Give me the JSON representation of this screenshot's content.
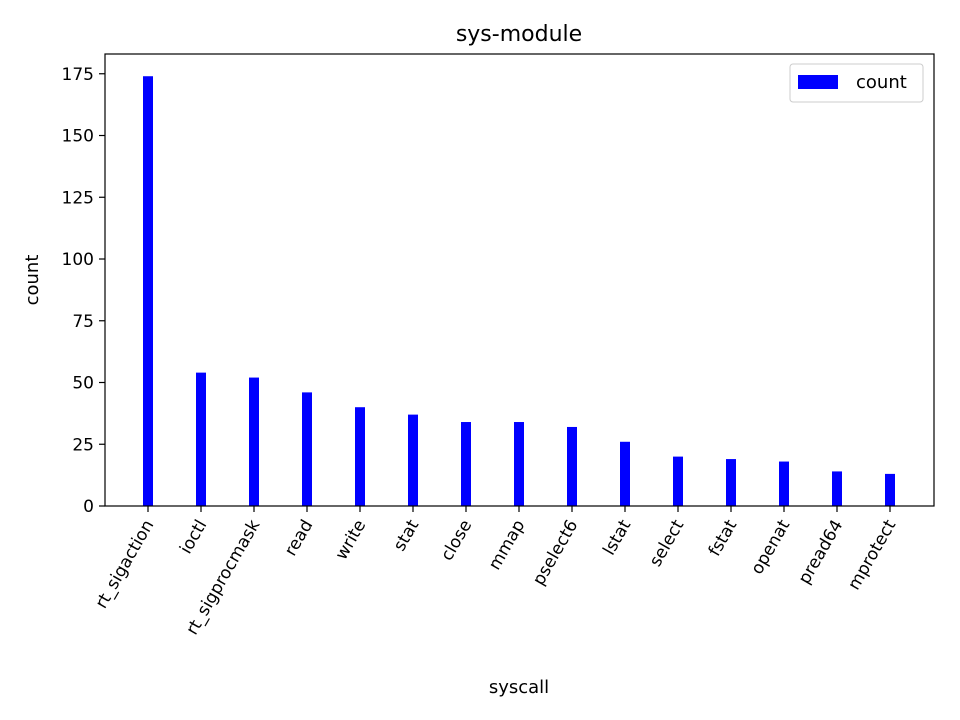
{
  "chart_data": {
    "type": "bar",
    "title": "sys-module",
    "xlabel": "syscall",
    "ylabel": "count",
    "categories": [
      "rt_sigaction",
      "ioctl",
      "rt_sigprocmask",
      "read",
      "write",
      "stat",
      "close",
      "mmap",
      "pselect6",
      "lstat",
      "select",
      "fstat",
      "openat",
      "pread64",
      "mprotect"
    ],
    "series": [
      {
        "name": "count",
        "values": [
          174,
          54,
          52,
          46,
          40,
          37,
          34,
          34,
          32,
          26,
          20,
          19,
          18,
          14,
          13
        ]
      }
    ],
    "ylim": [
      0,
      183
    ],
    "yticks": [
      0,
      25,
      50,
      75,
      100,
      125,
      150,
      175
    ],
    "grid": false,
    "legend_position": "top-right",
    "colors": {
      "bar": "#0000ff",
      "axis": "#000000",
      "background": "#ffffff"
    }
  }
}
